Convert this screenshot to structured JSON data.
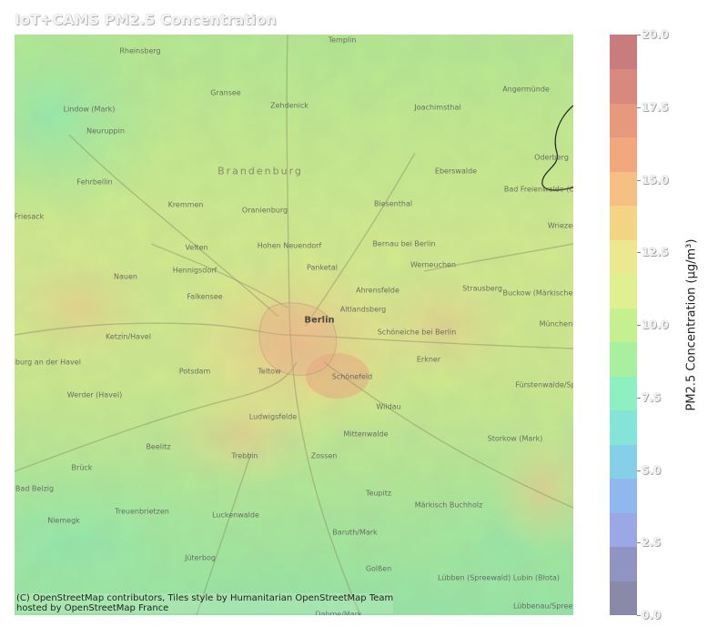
{
  "title": "IoT+CAMS PM2.5 Concentration",
  "attribution": [
    "(C) OpenStreetMap contributors, Tiles style by Humanitarian OpenStreetMap Team",
    "hosted by OpenStreetMap France"
  ],
  "colorbar": {
    "label": "PM2.5 Concentration (µg/m³)",
    "min": 0,
    "max": 20,
    "ticks": [
      "0.0",
      "2.5",
      "5.0",
      "7.5",
      "10.0",
      "12.5",
      "15.0",
      "17.5",
      "20.0"
    ],
    "colors": [
      "#8a8aa8",
      "#8f94c2",
      "#9aa8e6",
      "#8fb8ef",
      "#86cfe8",
      "#84e4d8",
      "#8ef0c0",
      "#a8f0a0",
      "#c4f090",
      "#e0f090",
      "#ece890",
      "#f2d484",
      "#f6c084",
      "#f2a87c",
      "#e8987c",
      "#d8887c",
      "#c87c7c"
    ]
  },
  "places": [
    {
      "name": "Templin"
    },
    {
      "name": "Rheinsberg"
    },
    {
      "name": "Gransee"
    },
    {
      "name": "Zehdenick"
    },
    {
      "name": "Angermünde"
    },
    {
      "name": "Lindow (Mark)"
    },
    {
      "name": "Joachimsthal"
    },
    {
      "name": "Neuruppin"
    },
    {
      "name": "Oderberg"
    },
    {
      "name": "Eberswalde"
    },
    {
      "name": "Bad Freienwalde (Oder)"
    },
    {
      "name": "Brandenburg"
    },
    {
      "name": "Fehrbellin"
    },
    {
      "name": "Kremmen"
    },
    {
      "name": "Oranienburg"
    },
    {
      "name": "Biesenthal"
    },
    {
      "name": "Friesack"
    },
    {
      "name": "Wriezen"
    },
    {
      "name": "Velten"
    },
    {
      "name": "Hohen Neuendorf"
    },
    {
      "name": "Bernau bei Berlin"
    },
    {
      "name": "Hennigsdorf"
    },
    {
      "name": "Panketal"
    },
    {
      "name": "Werneuchen"
    },
    {
      "name": "Nauen"
    },
    {
      "name": "Falkensee"
    },
    {
      "name": "Ahrensfelde"
    },
    {
      "name": "Strausberg"
    },
    {
      "name": "Buckow (Märkische Schweiz)"
    },
    {
      "name": "Altlandsberg"
    },
    {
      "name": "Berlin"
    },
    {
      "name": "Schöneiche bei Berlin"
    },
    {
      "name": "Ketzin/Havel"
    },
    {
      "name": "Münchenberg"
    },
    {
      "name": "Brandenburg an der Havel"
    },
    {
      "name": "Potsdam"
    },
    {
      "name": "Teltow"
    },
    {
      "name": "Schönefeld"
    },
    {
      "name": "Erkner"
    },
    {
      "name": "Fürstenwalde/Spree"
    },
    {
      "name": "Werder (Havel)"
    },
    {
      "name": "Wildau"
    },
    {
      "name": "Ludwigsfelde"
    },
    {
      "name": "Mittenwalde"
    },
    {
      "name": "Storkow (Mark)"
    },
    {
      "name": "Beelitz"
    },
    {
      "name": "Trebbin"
    },
    {
      "name": "Zossen"
    },
    {
      "name": "Brück"
    },
    {
      "name": "Teupitz"
    },
    {
      "name": "Bad Belzig"
    },
    {
      "name": "Märkisch Buchholz"
    },
    {
      "name": "Treuenbrietzen"
    },
    {
      "name": "Niemegk"
    },
    {
      "name": "Luckenwalde"
    },
    {
      "name": "Baruth/Mark"
    },
    {
      "name": "Jüterbog"
    },
    {
      "name": "Golßen"
    },
    {
      "name": "Lübben (Spreewald) Lubin (Błota)"
    },
    {
      "name": "Lübbenau/Spreewald"
    },
    {
      "name": "Dahme/Mark"
    }
  ]
}
